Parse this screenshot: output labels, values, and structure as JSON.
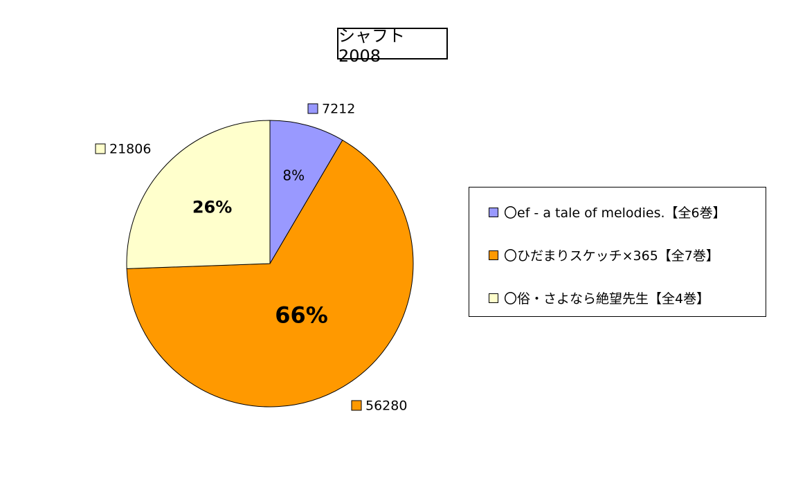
{
  "chart_data": {
    "type": "pie",
    "title": "シャフト2008",
    "slices": [
      {
        "label": "〇ef - a tale of melodies.【全6巻】",
        "value": 7212,
        "percent": "8%",
        "color": "#9999FF"
      },
      {
        "label": "〇ひだまりスケッチ×365【全7巻】",
        "value": 56280,
        "percent": "66%",
        "color": "#FF9900"
      },
      {
        "label": "〇俗・さよなら絶望先生【全4巻】",
        "value": 21806,
        "percent": "26%",
        "color": "#FFFFCC"
      }
    ],
    "legend_position": "right"
  }
}
